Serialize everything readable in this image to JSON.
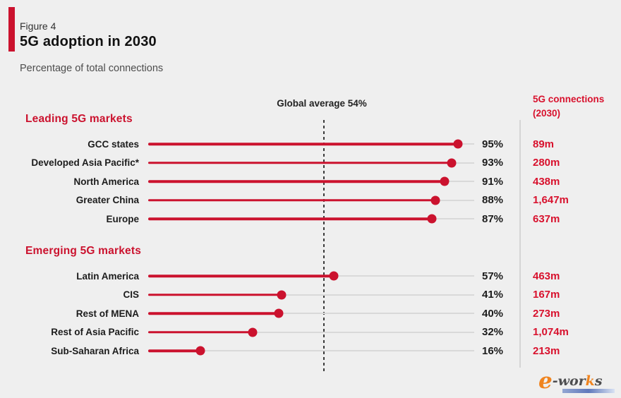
{
  "header": {
    "figure_label": "Figure 4",
    "title": "5G adoption in 2030",
    "subtitle": "Percentage of total connections"
  },
  "chart": {
    "global_average_label": "Global average 54%",
    "connections_header": "5G connections\n(2030)"
  },
  "chart_data": {
    "type": "bar",
    "variant": "lollipop-horizontal",
    "title": "5G adoption in 2030",
    "subtitle": "Percentage of total connections",
    "unit": "%",
    "xlim": [
      0,
      100
    ],
    "grid": false,
    "global_average": 54,
    "global_average_label": "Global average 54%",
    "value_column_header": "5G connections (2030)",
    "sections": [
      {
        "heading": "Leading 5G markets",
        "rows": [
          {
            "label": "GCC states",
            "value": 95,
            "percent_label": "95%",
            "connections": "89m"
          },
          {
            "label": "Developed Asia Pacific*",
            "value": 93,
            "percent_label": "93%",
            "connections": "280m"
          },
          {
            "label": "North America",
            "value": 91,
            "percent_label": "91%",
            "connections": "438m"
          },
          {
            "label": "Greater China",
            "value": 88,
            "percent_label": "88%",
            "connections": "1,647m"
          },
          {
            "label": "Europe",
            "value": 87,
            "percent_label": "87%",
            "connections": "637m"
          }
        ]
      },
      {
        "heading": "Emerging 5G markets",
        "rows": [
          {
            "label": "Latin America",
            "value": 57,
            "percent_label": "57%",
            "connections": "463m"
          },
          {
            "label": "CIS",
            "value": 41,
            "percent_label": "41%",
            "connections": "167m"
          },
          {
            "label": "Rest of MENA",
            "value": 40,
            "percent_label": "40%",
            "connections": "273m"
          },
          {
            "label": "Rest of Asia Pacific",
            "value": 32,
            "percent_label": "32%",
            "connections": "1,074m"
          },
          {
            "label": "Sub-Saharan Africa",
            "value": 16,
            "percent_label": "16%",
            "connections": "213m"
          }
        ]
      }
    ]
  },
  "colors": {
    "accent_red": "#CB122E",
    "text_red": "#D8112D",
    "text_dark": "#1C1C1C",
    "background": "#EFEFEF",
    "track_gray": "#D9D9D9"
  },
  "logo": {
    "e": "e",
    "rest": "-wor",
    "k": "k",
    "s": "s"
  }
}
